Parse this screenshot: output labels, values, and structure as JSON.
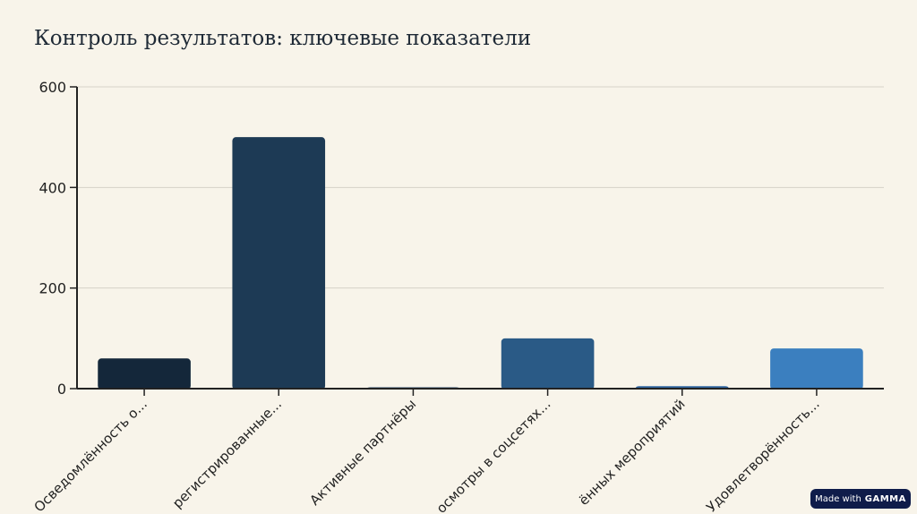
{
  "title": "Контроль результатов: ключевые показатели",
  "badge": {
    "prefix": "Made with",
    "brand": "GAMMA"
  },
  "chart_data": {
    "type": "bar",
    "categories": [
      "Осведомлённость о...",
      "регистрированные...",
      "Активные партнёры",
      "осмотры в соцсетях...",
      "ённых мероприятий",
      "Удовлетворённость..."
    ],
    "values": [
      60,
      500,
      2,
      100,
      5,
      80
    ],
    "colors": [
      "#14273a",
      "#1d3a55",
      "#234565",
      "#2a5a86",
      "#2f64a0",
      "#3b7fbf"
    ],
    "ylim": [
      0,
      600
    ],
    "yticks": [
      0,
      200,
      400,
      600
    ],
    "grid": true,
    "xlabel": "",
    "ylabel": ""
  }
}
